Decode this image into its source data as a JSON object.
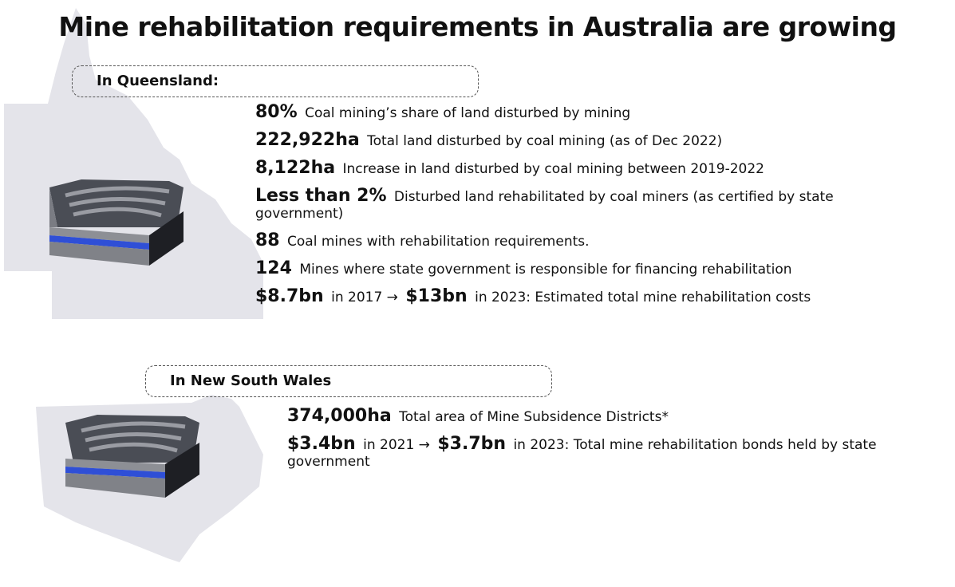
{
  "title": "Mine rehabilitation requirements in Australia are growing",
  "sections": [
    {
      "heading": "In Queensland:",
      "items": [
        {
          "parts": [
            {
              "text": "80%",
              "strong": true
            },
            {
              "text": "Coal mining’s share of land disturbed by mining",
              "strong": false
            }
          ]
        },
        {
          "parts": [
            {
              "text": "222,922ha",
              "strong": true
            },
            {
              "text": "Total land disturbed by coal mining (as of Dec 2022)",
              "strong": false
            }
          ]
        },
        {
          "parts": [
            {
              "text": "8,122ha",
              "strong": true
            },
            {
              "text": "Increase in land disturbed by coal mining between 2019-2022",
              "strong": false
            }
          ]
        },
        {
          "parts": [
            {
              "text": "Less than 2%",
              "strong": true
            },
            {
              "text": "Disturbed land rehabilitated by coal miners (as certified by state government)",
              "strong": false
            }
          ]
        },
        {
          "parts": [
            {
              "text": "88",
              "strong": true
            },
            {
              "text": "Coal mines with rehabilitation requirements.",
              "strong": false
            }
          ]
        },
        {
          "parts": [
            {
              "text": "124",
              "strong": true
            },
            {
              "text": "Mines where state government is responsible for financing rehabilitation",
              "strong": false
            }
          ]
        },
        {
          "parts": [
            {
              "text": "$8.7bn",
              "strong": true
            },
            {
              "text": "in 2017 →",
              "strong": false
            },
            {
              "text": "$13bn",
              "strong": true
            },
            {
              "text": "in 2023: Estimated total mine rehabilitation costs",
              "strong": false
            }
          ]
        }
      ]
    },
    {
      "heading": "In New South Wales",
      "items": [
        {
          "parts": [
            {
              "text": "374,000ha",
              "strong": true
            },
            {
              "text": "Total area of Mine Subsidence Districts*",
              "strong": false
            }
          ]
        },
        {
          "parts": [
            {
              "text": "$3.4bn",
              "strong": true
            },
            {
              "text": "in 2021 →",
              "strong": false
            },
            {
              "text": "$3.7bn",
              "strong": true
            },
            {
              "text": "in 2023: Total mine rehabilitation bonds held by state government",
              "strong": false
            }
          ]
        }
      ]
    }
  ]
}
